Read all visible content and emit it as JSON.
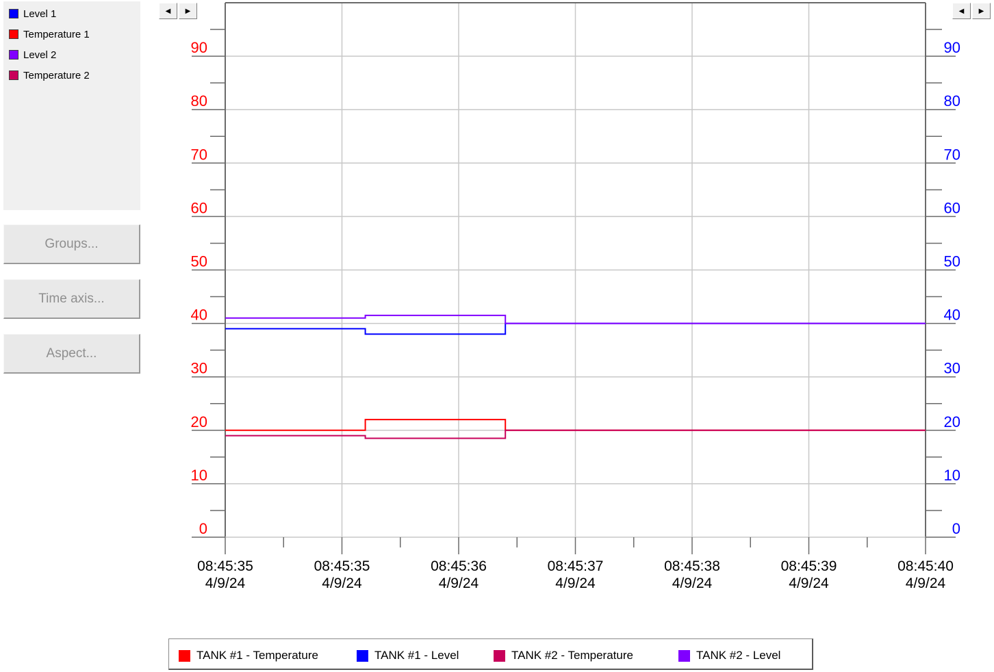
{
  "side_panel": {
    "series": [
      {
        "label": "Level 1",
        "color": "#0000ff"
      },
      {
        "label": "Temperature 1",
        "color": "#ff0000"
      },
      {
        "label": "Level 2",
        "color": "#8000ff"
      },
      {
        "label": "Temperature 2",
        "color": "#c8005a"
      }
    ],
    "buttons": {
      "groups": "Groups...",
      "time_axis": "Time axis...",
      "aspect": "Aspect..."
    }
  },
  "scroll_icons": [
    "triangle-left",
    "triangle-right"
  ],
  "legend": [
    {
      "label": "TANK #1 - Temperature",
      "color": "#ff0000"
    },
    {
      "label": "TANK #1 - Level",
      "color": "#0000ff"
    },
    {
      "label": "TANK #2 - Temperature",
      "color": "#c8005a"
    },
    {
      "label": "TANK #2 - Level",
      "color": "#8000ff"
    }
  ],
  "chart_data": {
    "type": "line",
    "y_left": {
      "ticks": [
        "0",
        "10",
        "20",
        "30",
        "40",
        "50",
        "60",
        "70",
        "80",
        "90"
      ],
      "range": [
        0,
        100
      ],
      "color": "#ff0000"
    },
    "y_right": {
      "ticks": [
        "0",
        "10",
        "20",
        "30",
        "40",
        "50",
        "60",
        "70",
        "80",
        "90"
      ],
      "range": [
        0,
        100
      ],
      "color": "#0000ff"
    },
    "x_ticks": [
      {
        "time": "08:45:35",
        "date": "4/9/24"
      },
      {
        "time": "08:45:35",
        "date": "4/9/24"
      },
      {
        "time": "08:45:36",
        "date": "4/9/24"
      },
      {
        "time": "08:45:37",
        "date": "4/9/24"
      },
      {
        "time": "08:45:38",
        "date": "4/9/24"
      },
      {
        "time": "08:45:39",
        "date": "4/9/24"
      },
      {
        "time": "08:45:40",
        "date": "4/9/24"
      }
    ],
    "x_range_seconds": [
      0,
      6
    ],
    "grid": true,
    "series": [
      {
        "name": "TANK #1 - Temperature",
        "color": "#ff0000",
        "points": [
          [
            0,
            20
          ],
          [
            1.2,
            20
          ],
          [
            1.2,
            22
          ],
          [
            2.4,
            22
          ],
          [
            2.4,
            20
          ],
          [
            6,
            20
          ]
        ]
      },
      {
        "name": "TANK #1 - Level",
        "color": "#0000ff",
        "points": [
          [
            0,
            39
          ],
          [
            1.2,
            39
          ],
          [
            1.2,
            38
          ],
          [
            2.4,
            38
          ],
          [
            2.4,
            40
          ],
          [
            6,
            40
          ]
        ]
      },
      {
        "name": "TANK #2 - Temperature",
        "color": "#c8005a",
        "points": [
          [
            0,
            19
          ],
          [
            1.2,
            19
          ],
          [
            1.2,
            18.5
          ],
          [
            2.4,
            18.5
          ],
          [
            2.4,
            20
          ],
          [
            6,
            20
          ]
        ]
      },
      {
        "name": "TANK #2 - Level",
        "color": "#8000ff",
        "points": [
          [
            0,
            41
          ],
          [
            1.2,
            41
          ],
          [
            1.2,
            41.5
          ],
          [
            2.4,
            41.5
          ],
          [
            2.4,
            40
          ],
          [
            6,
            40
          ]
        ]
      }
    ]
  }
}
